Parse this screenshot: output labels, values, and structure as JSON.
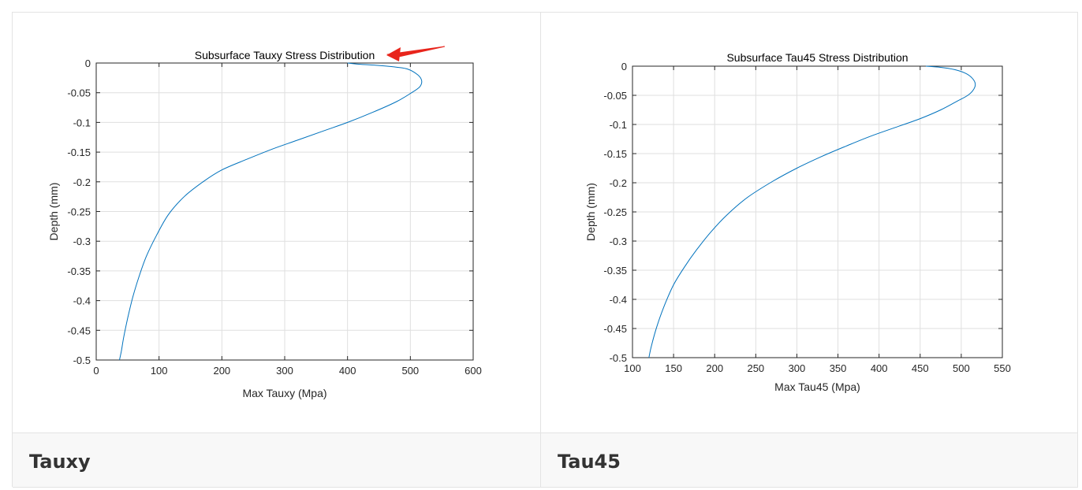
{
  "captions": [
    "Tauxy",
    "Tau45"
  ],
  "colors": {
    "series": "#0072bd",
    "arrow": "#e8251c",
    "grid": "#dfdfdf",
    "axis": "#262626"
  },
  "chart_data": [
    {
      "type": "line",
      "title": "Subsurface Tauxy Stress Distribution",
      "xlabel": "Max Tauxy (Mpa)",
      "ylabel": "Depth (mm)",
      "xlim": [
        0,
        600
      ],
      "ylim": [
        -0.5,
        0
      ],
      "xticks": [
        0,
        100,
        200,
        300,
        400,
        500,
        600
      ],
      "xtick_labels": [
        "0",
        "100",
        "200",
        "300",
        "400",
        "500",
        "600"
      ],
      "yticks": [
        0,
        -0.05,
        -0.1,
        -0.15,
        -0.2,
        -0.25,
        -0.3,
        -0.35,
        -0.4,
        -0.45,
        -0.5
      ],
      "ytick_labels": [
        "0",
        "-0.05",
        "-0.1",
        "-0.15",
        "-0.2",
        "-0.25",
        "-0.3",
        "-0.35",
        "-0.4",
        "-0.45",
        "-0.5"
      ],
      "grid": true,
      "annotation": "red arrow pointing to top of curve",
      "series": [
        {
          "x": [
            400,
            418,
            448,
            470,
            495,
            512,
            518,
            515,
            502,
            478,
            440,
            400,
            360,
            320,
            280,
            240,
            200,
            170,
            140,
            115,
            96,
            80,
            68,
            58,
            50,
            44,
            40,
            37
          ],
          "y": [
            0,
            -0.002,
            -0.004,
            -0.006,
            -0.01,
            -0.02,
            -0.03,
            -0.04,
            -0.05,
            -0.065,
            -0.083,
            -0.1,
            -0.115,
            -0.13,
            -0.145,
            -0.162,
            -0.18,
            -0.2,
            -0.225,
            -0.255,
            -0.29,
            -0.325,
            -0.36,
            -0.395,
            -0.43,
            -0.46,
            -0.485,
            -0.5
          ]
        }
      ]
    },
    {
      "type": "line",
      "title": "Subsurface Tau45 Stress Distribution",
      "xlabel": "Max Tau45 (Mpa)",
      "ylabel": "Depth (mm)",
      "xlim": [
        100,
        550
      ],
      "ylim": [
        -0.5,
        0
      ],
      "xticks": [
        100,
        150,
        200,
        250,
        300,
        350,
        400,
        450,
        500,
        550
      ],
      "xtick_labels": [
        "100",
        "150",
        "200",
        "250",
        "300",
        "350",
        "400",
        "450",
        "500",
        "550"
      ],
      "yticks": [
        0,
        -0.05,
        -0.1,
        -0.15,
        -0.2,
        -0.25,
        -0.3,
        -0.35,
        -0.4,
        -0.45,
        -0.5
      ],
      "ytick_labels": [
        "0",
        "-0.05",
        "-0.1",
        "-0.15",
        "-0.2",
        "-0.25",
        "-0.3",
        "-0.35",
        "-0.4",
        "-0.45",
        "-0.5"
      ],
      "grid": true,
      "series": [
        {
          "x": [
            457,
            475,
            492,
            505,
            513,
            517,
            515,
            508,
            495,
            475,
            450,
            420,
            390,
            360,
            330,
            300,
            270,
            240,
            215,
            195,
            178,
            163,
            150,
            139,
            130,
            123,
            120
          ],
          "y": [
            0,
            -0.002,
            -0.006,
            -0.012,
            -0.02,
            -0.03,
            -0.04,
            -0.05,
            -0.06,
            -0.075,
            -0.09,
            -0.105,
            -0.12,
            -0.137,
            -0.155,
            -0.175,
            -0.198,
            -0.225,
            -0.255,
            -0.285,
            -0.315,
            -0.345,
            -0.375,
            -0.41,
            -0.445,
            -0.48,
            -0.5
          ]
        }
      ]
    }
  ]
}
